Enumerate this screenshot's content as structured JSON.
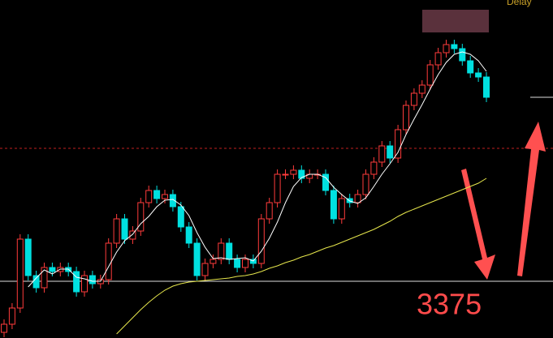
{
  "chart_data": {
    "type": "candlestick",
    "header_text": "Delay",
    "annotation": "3375",
    "ylim": [
      3305,
      3722
    ],
    "up_color": "#ff3b3b",
    "down_color": "#00e0e0",
    "open": [
      3312,
      3322,
      3342,
      3427,
      3382,
      3367,
      3392,
      3387,
      3392,
      3387,
      3362,
      3382,
      3372,
      3377,
      3422,
      3452,
      3427,
      3437,
      3472,
      3487,
      3477,
      3482,
      3467,
      3442,
      3422,
      3382,
      3397,
      3402,
      3422,
      3402,
      3392,
      3402,
      3397,
      3452,
      3472,
      3507,
      3507,
      3512,
      3502,
      3507,
      3507,
      3487,
      3452,
      3477,
      3472,
      3482,
      3507,
      3522,
      3542,
      3527,
      3562,
      3592,
      3607,
      3617,
      3642,
      3657,
      3667,
      3662,
      3647,
      3632,
      3627
    ],
    "high": [
      3328,
      3348,
      3433,
      3433,
      3388,
      3398,
      3398,
      3398,
      3398,
      3393,
      3388,
      3388,
      3383,
      3428,
      3458,
      3458,
      3443,
      3478,
      3493,
      3493,
      3488,
      3488,
      3473,
      3448,
      3428,
      3403,
      3408,
      3428,
      3428,
      3408,
      3408,
      3408,
      3458,
      3478,
      3513,
      3513,
      3518,
      3518,
      3513,
      3513,
      3513,
      3493,
      3483,
      3483,
      3488,
      3513,
      3528,
      3548,
      3548,
      3568,
      3598,
      3613,
      3623,
      3648,
      3663,
      3673,
      3673,
      3668,
      3653,
      3638,
      3633
    ],
    "low": [
      3306,
      3316,
      3336,
      3376,
      3361,
      3361,
      3381,
      3381,
      3381,
      3356,
      3356,
      3366,
      3366,
      3371,
      3416,
      3421,
      3421,
      3431,
      3466,
      3471,
      3471,
      3461,
      3436,
      3416,
      3376,
      3376,
      3391,
      3396,
      3396,
      3386,
      3386,
      3391,
      3391,
      3446,
      3466,
      3501,
      3501,
      3496,
      3496,
      3501,
      3481,
      3446,
      3446,
      3466,
      3466,
      3476,
      3501,
      3516,
      3521,
      3521,
      3556,
      3586,
      3601,
      3611,
      3636,
      3651,
      3656,
      3641,
      3626,
      3621,
      3596
    ],
    "close": [
      3322,
      3342,
      3427,
      3382,
      3367,
      3392,
      3387,
      3392,
      3387,
      3362,
      3382,
      3372,
      3377,
      3422,
      3452,
      3427,
      3437,
      3472,
      3487,
      3477,
      3482,
      3467,
      3442,
      3422,
      3382,
      3397,
      3402,
      3422,
      3402,
      3392,
      3402,
      3397,
      3452,
      3472,
      3507,
      3507,
      3512,
      3502,
      3507,
      3507,
      3487,
      3452,
      3477,
      3472,
      3482,
      3507,
      3522,
      3542,
      3527,
      3562,
      3592,
      3607,
      3617,
      3642,
      3657,
      3667,
      3662,
      3647,
      3632,
      3627,
      3602
    ],
    "series": [
      {
        "color": "#ffffff",
        "values": [
          null,
          null,
          null,
          3368,
          3379,
          3389,
          3384,
          3390,
          3390,
          3380,
          3378,
          3375,
          3375,
          3393,
          3411,
          3425,
          3433,
          3446,
          3455,
          3467,
          3475,
          3476,
          3469,
          3456,
          3435,
          3417,
          3403,
          3404,
          3402,
          3403,
          3404,
          3400,
          3412,
          3428,
          3448,
          3472,
          3492,
          3503,
          3507,
          3507,
          3503,
          3491,
          3482,
          3474,
          3471,
          3478,
          3492,
          3507,
          3520,
          3534,
          3556,
          3575,
          3593,
          3612,
          3630,
          3645,
          3655,
          3658,
          3655,
          3647,
          3634
        ]
      },
      {
        "color": "#e6e64c",
        "values": [
          null,
          null,
          null,
          null,
          null,
          null,
          null,
          null,
          null,
          null,
          null,
          null,
          null,
          null,
          3310,
          3320,
          3330,
          3340,
          3349,
          3357,
          3364,
          3369,
          3372,
          3374,
          3375,
          3376,
          3377,
          3378,
          3379,
          3381,
          3382,
          3384,
          3387,
          3391,
          3394,
          3398,
          3401,
          3405,
          3408,
          3412,
          3416,
          3419,
          3423,
          3427,
          3431,
          3435,
          3439,
          3444,
          3449,
          3455,
          3460,
          3464,
          3468,
          3472,
          3476,
          3480,
          3484,
          3488,
          3492,
          3496,
          3502
        ]
      }
    ],
    "reference_lines": [
      {
        "value": 3375,
        "color": "#dddddd",
        "style": "solid",
        "span": "full"
      },
      {
        "value": 3539,
        "color": "#c02020",
        "style": "dashed",
        "span": "full"
      },
      {
        "value": 3602,
        "color": "#dddddd",
        "style": "solid",
        "span": "right"
      }
    ]
  }
}
